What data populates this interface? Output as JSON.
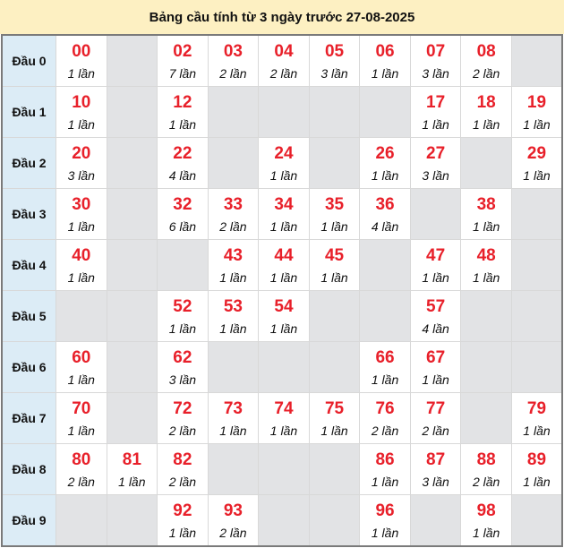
{
  "title": "Bảng cầu tính từ 3 ngày trước 27-08-2025",
  "colors": {
    "header_bg": "#fdf0c2",
    "label_bg": "#dcecf6",
    "empty_bg": "#e2e3e5",
    "number": "#e8202a"
  },
  "rows": [
    {
      "label": "Đầu 0",
      "cells": [
        {
          "n": "00",
          "c": "1 lần"
        },
        null,
        {
          "n": "02",
          "c": "7 lần"
        },
        {
          "n": "03",
          "c": "2 lần"
        },
        {
          "n": "04",
          "c": "2 lần"
        },
        {
          "n": "05",
          "c": "3 lần"
        },
        {
          "n": "06",
          "c": "1 lần"
        },
        {
          "n": "07",
          "c": "3 lần"
        },
        {
          "n": "08",
          "c": "2 lần"
        },
        null
      ]
    },
    {
      "label": "Đầu 1",
      "cells": [
        {
          "n": "10",
          "c": "1 lần"
        },
        null,
        {
          "n": "12",
          "c": "1 lần"
        },
        null,
        null,
        null,
        null,
        {
          "n": "17",
          "c": "1 lần"
        },
        {
          "n": "18",
          "c": "1 lần"
        },
        {
          "n": "19",
          "c": "1 lần"
        }
      ]
    },
    {
      "label": "Đầu 2",
      "cells": [
        {
          "n": "20",
          "c": "3 lần"
        },
        null,
        {
          "n": "22",
          "c": "4 lần"
        },
        null,
        {
          "n": "24",
          "c": "1 lần"
        },
        null,
        {
          "n": "26",
          "c": "1 lần"
        },
        {
          "n": "27",
          "c": "3 lần"
        },
        null,
        {
          "n": "29",
          "c": "1 lần"
        }
      ]
    },
    {
      "label": "Đầu 3",
      "cells": [
        {
          "n": "30",
          "c": "1 lần"
        },
        null,
        {
          "n": "32",
          "c": "6 lần"
        },
        {
          "n": "33",
          "c": "2 lần"
        },
        {
          "n": "34",
          "c": "1 lần"
        },
        {
          "n": "35",
          "c": "1 lần"
        },
        {
          "n": "36",
          "c": "4 lần"
        },
        null,
        {
          "n": "38",
          "c": "1 lần"
        },
        null
      ]
    },
    {
      "label": "Đầu 4",
      "cells": [
        {
          "n": "40",
          "c": "1 lần"
        },
        null,
        null,
        {
          "n": "43",
          "c": "1 lần"
        },
        {
          "n": "44",
          "c": "1 lần"
        },
        {
          "n": "45",
          "c": "1 lần"
        },
        null,
        {
          "n": "47",
          "c": "1 lần"
        },
        {
          "n": "48",
          "c": "1 lần"
        },
        null
      ]
    },
    {
      "label": "Đầu 5",
      "cells": [
        null,
        null,
        {
          "n": "52",
          "c": "1 lần"
        },
        {
          "n": "53",
          "c": "1 lần"
        },
        {
          "n": "54",
          "c": "1 lần"
        },
        null,
        null,
        {
          "n": "57",
          "c": "4 lần"
        },
        null,
        null
      ]
    },
    {
      "label": "Đầu 6",
      "cells": [
        {
          "n": "60",
          "c": "1 lần"
        },
        null,
        {
          "n": "62",
          "c": "3 lần"
        },
        null,
        null,
        null,
        {
          "n": "66",
          "c": "1 lần"
        },
        {
          "n": "67",
          "c": "1 lần"
        },
        null,
        null
      ]
    },
    {
      "label": "Đầu 7",
      "cells": [
        {
          "n": "70",
          "c": "1 lần"
        },
        null,
        {
          "n": "72",
          "c": "2 lần"
        },
        {
          "n": "73",
          "c": "1 lần"
        },
        {
          "n": "74",
          "c": "1 lần"
        },
        {
          "n": "75",
          "c": "1 lần"
        },
        {
          "n": "76",
          "c": "2 lần"
        },
        {
          "n": "77",
          "c": "2 lần"
        },
        null,
        {
          "n": "79",
          "c": "1 lần"
        }
      ]
    },
    {
      "label": "Đầu 8",
      "cells": [
        {
          "n": "80",
          "c": "2 lần"
        },
        {
          "n": "81",
          "c": "1 lần"
        },
        {
          "n": "82",
          "c": "2 lần"
        },
        null,
        null,
        null,
        {
          "n": "86",
          "c": "1 lần"
        },
        {
          "n": "87",
          "c": "3 lần"
        },
        {
          "n": "88",
          "c": "2 lần"
        },
        {
          "n": "89",
          "c": "1 lần"
        }
      ]
    },
    {
      "label": "Đầu 9",
      "cells": [
        null,
        null,
        {
          "n": "92",
          "c": "1 lần"
        },
        {
          "n": "93",
          "c": "2 lần"
        },
        null,
        null,
        {
          "n": "96",
          "c": "1 lần"
        },
        null,
        {
          "n": "98",
          "c": "1 lần"
        },
        null
      ]
    }
  ]
}
